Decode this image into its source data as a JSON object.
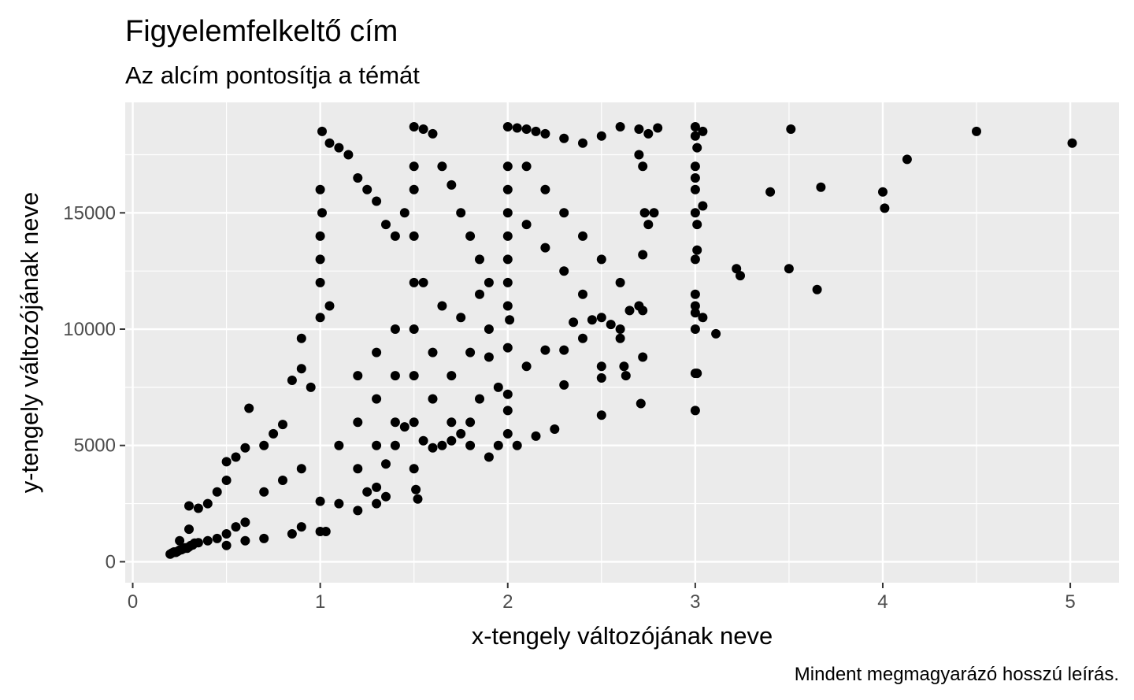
{
  "chart_data": {
    "type": "scatter",
    "title": "Figyelemfelkeltő cím",
    "subtitle": "Az alcím pontosítja a témát",
    "xlabel": "x-tengely változójának neve",
    "ylabel": "y-tengely változójának neve",
    "caption": "Mindent megmagyarázó hosszú leírás.",
    "xlim": [
      -0.04,
      5.26
    ],
    "ylim": [
      -900,
      19750
    ],
    "x_ticks": [
      0,
      1,
      2,
      3,
      4,
      5
    ],
    "x_tick_labels": [
      "0",
      "1",
      "2",
      "3",
      "4",
      "5"
    ],
    "y_ticks": [
      0,
      5000,
      10000,
      15000
    ],
    "y_tick_labels": [
      "0",
      "5000",
      "10000",
      "15000"
    ],
    "grid": true,
    "legend": "none",
    "colors": {
      "panel": "#ebebeb",
      "grid": "#ffffff",
      "point": "#000000",
      "tick_text": "#4d4d4d"
    },
    "points": [
      [
        0.2,
        326
      ],
      [
        0.21,
        380
      ],
      [
        0.22,
        420
      ],
      [
        0.23,
        404
      ],
      [
        0.24,
        450
      ],
      [
        0.25,
        500
      ],
      [
        0.26,
        520
      ],
      [
        0.27,
        560
      ],
      [
        0.28,
        600
      ],
      [
        0.29,
        580
      ],
      [
        0.3,
        640
      ],
      [
        0.31,
        700
      ],
      [
        0.32,
        720
      ],
      [
        0.33,
        800
      ],
      [
        0.35,
        820
      ],
      [
        0.4,
        900
      ],
      [
        0.45,
        1000
      ],
      [
        0.5,
        1200
      ],
      [
        0.55,
        1500
      ],
      [
        0.6,
        1700
      ],
      [
        0.25,
        900
      ],
      [
        0.3,
        1400
      ],
      [
        0.3,
        2400
      ],
      [
        0.35,
        2300
      ],
      [
        0.4,
        2500
      ],
      [
        0.45,
        3000
      ],
      [
        0.5,
        3500
      ],
      [
        0.5,
        4300
      ],
      [
        0.55,
        4500
      ],
      [
        0.6,
        4900
      ],
      [
        0.62,
        6600
      ],
      [
        0.7,
        5000
      ],
      [
        0.75,
        5500
      ],
      [
        0.8,
        5900
      ],
      [
        0.85,
        7800
      ],
      [
        0.9,
        8300
      ],
      [
        0.9,
        9600
      ],
      [
        0.95,
        7500
      ],
      [
        0.7,
        3000
      ],
      [
        0.8,
        3500
      ],
      [
        0.9,
        4000
      ],
      [
        1.0,
        2600
      ],
      [
        0.9,
        1500
      ],
      [
        0.85,
        1200
      ],
      [
        0.7,
        1000
      ],
      [
        0.6,
        900
      ],
      [
        0.5,
        700
      ],
      [
        1.0,
        1300
      ],
      [
        1.03,
        1300
      ],
      [
        1.05,
        11000
      ],
      [
        1.0,
        10500
      ],
      [
        1.0,
        12000
      ],
      [
        1.0,
        13000
      ],
      [
        1.0,
        14000
      ],
      [
        1.01,
        15000
      ],
      [
        1.0,
        16000
      ],
      [
        1.01,
        18500
      ],
      [
        1.05,
        18000
      ],
      [
        1.1,
        17800
      ],
      [
        1.15,
        17500
      ],
      [
        1.2,
        16500
      ],
      [
        1.25,
        16000
      ],
      [
        1.3,
        15500
      ],
      [
        1.35,
        14500
      ],
      [
        1.4,
        14000
      ],
      [
        1.45,
        15000
      ],
      [
        1.5,
        18700
      ],
      [
        1.55,
        18600
      ],
      [
        1.6,
        18400
      ],
      [
        1.65,
        17000
      ],
      [
        1.7,
        16200
      ],
      [
        1.75,
        15000
      ],
      [
        1.8,
        14000
      ],
      [
        1.85,
        13000
      ],
      [
        1.9,
        12000
      ],
      [
        1.5,
        17000
      ],
      [
        1.5,
        16000
      ],
      [
        1.5,
        14000
      ],
      [
        1.5,
        12000
      ],
      [
        1.5,
        10000
      ],
      [
        1.5,
        8000
      ],
      [
        1.5,
        6000
      ],
      [
        1.5,
        4000
      ],
      [
        1.51,
        3100
      ],
      [
        1.52,
        2700
      ],
      [
        1.2,
        8000
      ],
      [
        1.3,
        9000
      ],
      [
        1.4,
        10000
      ],
      [
        1.2,
        6000
      ],
      [
        1.3,
        7000
      ],
      [
        1.4,
        8000
      ],
      [
        1.1,
        5000
      ],
      [
        1.2,
        4000
      ],
      [
        1.3,
        5000
      ],
      [
        1.4,
        6000
      ],
      [
        1.6,
        7000
      ],
      [
        1.7,
        6000
      ],
      [
        1.8,
        5000
      ],
      [
        1.9,
        4500
      ],
      [
        1.25,
        3000
      ],
      [
        1.35,
        2800
      ],
      [
        1.1,
        2500
      ],
      [
        1.2,
        2200
      ],
      [
        1.3,
        2500
      ],
      [
        1.6,
        9000
      ],
      [
        1.7,
        8000
      ],
      [
        1.8,
        9000
      ],
      [
        1.9,
        10000
      ],
      [
        1.95,
        7500
      ],
      [
        1.55,
        12000
      ],
      [
        1.65,
        11000
      ],
      [
        1.75,
        10500
      ],
      [
        1.85,
        11500
      ],
      [
        2.0,
        18700
      ],
      [
        2.05,
        18650
      ],
      [
        2.1,
        18600
      ],
      [
        2.15,
        18500
      ],
      [
        2.2,
        18400
      ],
      [
        2.3,
        18200
      ],
      [
        2.4,
        18000
      ],
      [
        2.5,
        18300
      ],
      [
        2.6,
        18700
      ],
      [
        2.7,
        18600
      ],
      [
        2.75,
        18400
      ],
      [
        2.8,
        18650
      ],
      [
        2.0,
        17000
      ],
      [
        2.0,
        16000
      ],
      [
        2.0,
        15000
      ],
      [
        2.0,
        14000
      ],
      [
        2.0,
        13000
      ],
      [
        2.0,
        12000
      ],
      [
        2.0,
        11000
      ],
      [
        2.01,
        10400
      ],
      [
        2.1,
        17000
      ],
      [
        2.2,
        16000
      ],
      [
        2.3,
        15000
      ],
      [
        2.4,
        14000
      ],
      [
        2.5,
        13000
      ],
      [
        2.6,
        12000
      ],
      [
        2.7,
        11000
      ],
      [
        2.1,
        14500
      ],
      [
        2.2,
        13500
      ],
      [
        2.3,
        12500
      ],
      [
        2.4,
        11500
      ],
      [
        2.5,
        10500
      ],
      [
        2.6,
        10000
      ],
      [
        2.7,
        17500
      ],
      [
        2.72,
        17000
      ],
      [
        2.73,
        15000
      ],
      [
        2.75,
        14500
      ],
      [
        2.78,
        15000
      ],
      [
        2.72,
        13200
      ],
      [
        2.72,
        10800
      ],
      [
        2.72,
        8800
      ],
      [
        2.71,
        6800
      ],
      [
        2.65,
        10800
      ],
      [
        2.62,
        8400
      ],
      [
        2.5,
        8400
      ],
      [
        2.5,
        7900
      ],
      [
        2.5,
        6300
      ],
      [
        2.3,
        9100
      ],
      [
        2.2,
        9100
      ],
      [
        2.1,
        8400
      ],
      [
        2.0,
        7200
      ],
      [
        2.0,
        6500
      ],
      [
        2.0,
        5500
      ],
      [
        1.95,
        5000
      ],
      [
        2.05,
        5000
      ],
      [
        2.15,
        5400
      ],
      [
        2.25,
        5700
      ],
      [
        2.3,
        7600
      ],
      [
        2.35,
        10300
      ],
      [
        2.4,
        9600
      ],
      [
        2.45,
        10400
      ],
      [
        2.55,
        10200
      ],
      [
        2.6,
        9600
      ],
      [
        2.63,
        8000
      ],
      [
        2.0,
        9200
      ],
      [
        1.9,
        8800
      ],
      [
        1.85,
        7000
      ],
      [
        1.8,
        6000
      ],
      [
        1.75,
        5500
      ],
      [
        1.7,
        5200
      ],
      [
        1.65,
        5000
      ],
      [
        1.6,
        4900
      ],
      [
        1.55,
        5200
      ],
      [
        1.45,
        5800
      ],
      [
        1.4,
        5000
      ],
      [
        1.35,
        4200
      ],
      [
        1.3,
        3200
      ],
      [
        3.0,
        18700
      ],
      [
        3.0,
        18300
      ],
      [
        3.01,
        17800
      ],
      [
        3.04,
        18500
      ],
      [
        3.0,
        17000
      ],
      [
        3.0,
        16500
      ],
      [
        3.0,
        16000
      ],
      [
        3.0,
        15000
      ],
      [
        3.01,
        14500
      ],
      [
        3.04,
        15300
      ],
      [
        3.01,
        13400
      ],
      [
        3.0,
        13000
      ],
      [
        3.0,
        11500
      ],
      [
        3.0,
        11000
      ],
      [
        3.0,
        10700
      ],
      [
        3.04,
        10500
      ],
      [
        3.0,
        10000
      ],
      [
        3.0,
        8100
      ],
      [
        3.01,
        8100
      ],
      [
        3.11,
        9800
      ],
      [
        3.0,
        6500
      ],
      [
        3.22,
        12600
      ],
      [
        3.24,
        12300
      ],
      [
        3.4,
        15900
      ],
      [
        3.5,
        12600
      ],
      [
        3.51,
        18600
      ],
      [
        3.65,
        11700
      ],
      [
        3.67,
        16100
      ],
      [
        4.0,
        15900
      ],
      [
        4.01,
        15200
      ],
      [
        4.13,
        17300
      ],
      [
        4.5,
        18500
      ],
      [
        5.01,
        18000
      ]
    ]
  }
}
